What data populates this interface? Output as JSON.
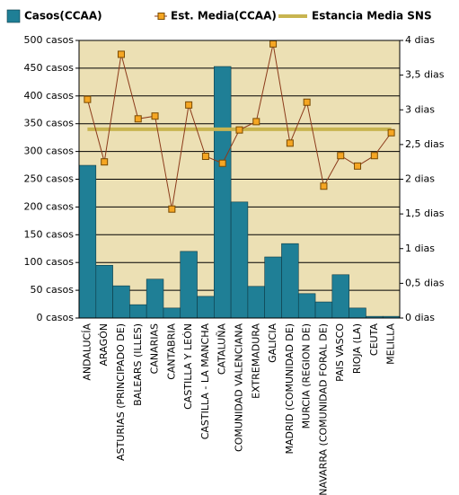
{
  "chart_data": {
    "type": "bar-line",
    "categories": [
      "ANDALUCÍA",
      "ARAGÓN",
      "ASTURIAS (PRINCIPADO DE)",
      "BALEARS (ILLES)",
      "CANARIAS",
      "CANTABRIA",
      "CASTILLA Y LEÓN",
      "CASTILLA - LA MANCHA",
      "CATALUÑA",
      "COMUNIDAD VALENCIANA",
      "EXTREMADURA",
      "GALICIA",
      "MADRID (COMUNIDAD DE)",
      "MURCIA (REGION DE)",
      "NAVARRA (COMUNIDAD FORAL DE)",
      "PAIS VASCO",
      "RIOJA (LA)",
      "CEUTA",
      "MELILLA"
    ],
    "series": [
      {
        "name": "Casos(CCAA)",
        "color": "#1f7f96",
        "kind": "bar",
        "values": [
          275,
          95,
          58,
          24,
          70,
          18,
          120,
          39,
          453,
          209,
          57,
          110,
          134,
          44,
          29,
          78,
          18,
          3,
          3
        ]
      },
      {
        "name": "Est. Media(CCAA)",
        "color": "#f5a623",
        "line_color": "#8b3a1a",
        "kind": "line",
        "axis": "y2",
        "values": [
          3.15,
          2.25,
          3.8,
          2.87,
          2.91,
          1.57,
          3.07,
          2.33,
          2.23,
          2.71,
          2.83,
          3.95,
          2.52,
          3.11,
          1.9,
          2.34,
          2.19,
          2.34,
          2.67
        ]
      },
      {
        "name": "Estancia Media SNS",
        "color": "#c8b450",
        "kind": "hline",
        "axis": "y2",
        "value": 2.72
      }
    ],
    "ylim": [
      0,
      500
    ],
    "yticks": [
      {
        "value": 0,
        "label": "0 casos"
      },
      {
        "value": 50,
        "label": "50 casos"
      },
      {
        "value": 100,
        "label": "100 casos"
      },
      {
        "value": 150,
        "label": "150 casos"
      },
      {
        "value": 200,
        "label": "200 casos"
      },
      {
        "value": 250,
        "label": "250 casos"
      },
      {
        "value": 300,
        "label": "300 casos"
      },
      {
        "value": 350,
        "label": "350 casos"
      },
      {
        "value": 400,
        "label": "400 casos"
      },
      {
        "value": 450,
        "label": "450 casos"
      },
      {
        "value": 500,
        "label": "500 casos"
      }
    ],
    "y2lim": [
      0,
      4
    ],
    "y2ticks": [
      {
        "value": 0,
        "label": "0 dias"
      },
      {
        "value": 0.5,
        "label": "0,5 dias"
      },
      {
        "value": 1,
        "label": "1 dias"
      },
      {
        "value": 1.5,
        "label": "1,5 dias"
      },
      {
        "value": 2,
        "label": "2 dias"
      },
      {
        "value": 2.5,
        "label": "2,5 dias"
      },
      {
        "value": 3,
        "label": "3 dias"
      },
      {
        "value": 3.5,
        "label": "3,5 dias"
      },
      {
        "value": 4,
        "label": "4 dias"
      }
    ],
    "grid": true,
    "plot_background": "#ece0b4"
  }
}
